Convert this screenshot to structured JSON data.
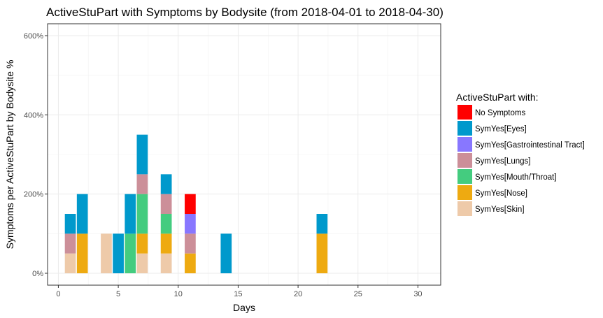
{
  "chart_data": {
    "type": "bar",
    "stacked": true,
    "title": "ActiveStuPart with Symptoms by Bodysite (from 2018-04-01 to 2018-04-30)",
    "xlabel": "Days",
    "ylabel": "Symptoms per ActiveStuPart by Bodysite %",
    "xlim": [
      -0.9,
      31.9
    ],
    "ylim": [
      -30,
      630
    ],
    "x_ticks": [
      0,
      5,
      10,
      15,
      20,
      25,
      30
    ],
    "x_tick_labels": [
      "0",
      "5",
      "10",
      "15",
      "20",
      "25",
      "30"
    ],
    "y_ticks": [
      0,
      200,
      400,
      600
    ],
    "y_tick_labels": [
      "0%",
      "200%",
      "400%",
      "600%"
    ],
    "grid": true,
    "legend": {
      "title": "ActiveStuPart with:",
      "position": "right"
    },
    "stack_order": [
      "SymYes[Skin]",
      "SymYes[Nose]",
      "SymYes[Mouth/Throat]",
      "SymYes[Lungs]",
      "SymYes[Gastrointestinal Tract]",
      "SymYes[Eyes]",
      "No Symptoms"
    ],
    "series": [
      {
        "name": "No Symptoms",
        "color": "#ff0000",
        "points": [
          {
            "x": 11,
            "y": 50
          }
        ]
      },
      {
        "name": "SymYes[Eyes]",
        "color": "#0099cc",
        "points": [
          {
            "x": 1,
            "y": 50
          },
          {
            "x": 2,
            "y": 100
          },
          {
            "x": 5,
            "y": 100
          },
          {
            "x": 6,
            "y": 100
          },
          {
            "x": 7,
            "y": 100
          },
          {
            "x": 9,
            "y": 50
          },
          {
            "x": 14,
            "y": 100
          },
          {
            "x": 22,
            "y": 50
          }
        ]
      },
      {
        "name": "SymYes[Gastrointestinal Tract]",
        "color": "#8877ff",
        "points": [
          {
            "x": 11,
            "y": 50
          }
        ]
      },
      {
        "name": "SymYes[Lungs]",
        "color": "#cc8f99",
        "points": [
          {
            "x": 1,
            "y": 50
          },
          {
            "x": 7,
            "y": 50
          },
          {
            "x": 9,
            "y": 50
          },
          {
            "x": 11,
            "y": 50
          }
        ]
      },
      {
        "name": "SymYes[Mouth/Throat]",
        "color": "#44cc7f",
        "points": [
          {
            "x": 6,
            "y": 100
          },
          {
            "x": 7,
            "y": 100
          },
          {
            "x": 9,
            "y": 50
          }
        ]
      },
      {
        "name": "SymYes[Nose]",
        "color": "#eeaa11",
        "points": [
          {
            "x": 2,
            "y": 100
          },
          {
            "x": 7,
            "y": 50
          },
          {
            "x": 9,
            "y": 50
          },
          {
            "x": 11,
            "y": 50
          },
          {
            "x": 22,
            "y": 100
          }
        ]
      },
      {
        "name": "SymYes[Skin]",
        "color": "#eecaa9",
        "points": [
          {
            "x": 1,
            "y": 50
          },
          {
            "x": 4,
            "y": 100
          },
          {
            "x": 7,
            "y": 50
          },
          {
            "x": 9,
            "y": 50
          }
        ]
      }
    ]
  }
}
